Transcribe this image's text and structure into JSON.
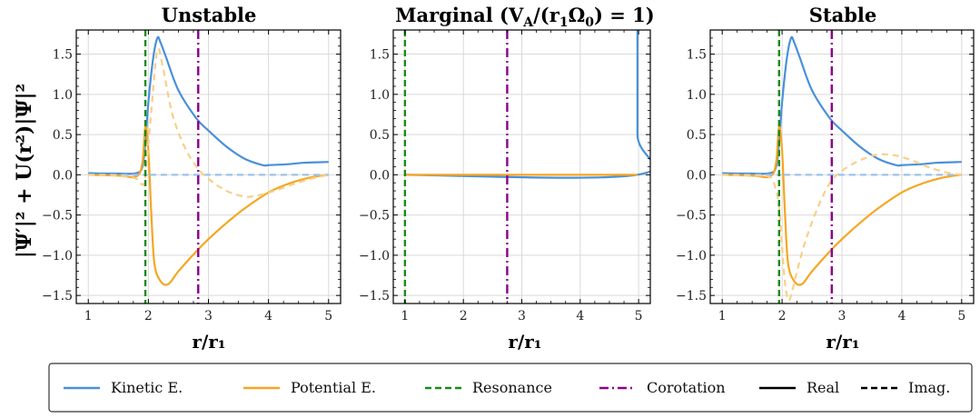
{
  "chart_data": [
    {
      "type": "line",
      "title": "Unstable",
      "xlabel": "r/r₁",
      "ylabel": "|Ψ′|² + U(r²)|Ψ|²",
      "xlim": [
        0.8,
        5.2
      ],
      "ylim": [
        -1.6,
        1.8
      ],
      "xticks": [
        1,
        2,
        3,
        4,
        5
      ],
      "yticks": [
        -1.5,
        -1.0,
        -0.5,
        0.0,
        0.5,
        1.0,
        1.5
      ],
      "xtick_labels": [
        "1",
        "2",
        "3",
        "4",
        "5"
      ],
      "ytick_labels": [
        "−1.5",
        "−1.0",
        "−0.5",
        "0.0",
        "0.5",
        "1.0",
        "1.5"
      ],
      "resonance_x": 1.95,
      "corotation_x": 2.83,
      "series": [
        {
          "name": "Kinetic E. (Real)",
          "color": "#4a90d9",
          "style": "solid",
          "x": [
            1.0,
            1.5,
            1.8,
            1.9,
            1.95,
            2.0,
            2.08,
            2.15,
            2.2,
            2.3,
            2.5,
            2.8,
            3.0,
            3.3,
            3.6,
            3.9,
            4.0,
            4.3,
            4.6,
            5.0
          ],
          "y": [
            0.02,
            0.015,
            0.02,
            0.1,
            0.4,
            0.9,
            1.45,
            1.7,
            1.65,
            1.45,
            1.05,
            0.7,
            0.55,
            0.35,
            0.2,
            0.12,
            0.12,
            0.13,
            0.15,
            0.16
          ]
        },
        {
          "name": "Potential E. (Real)",
          "color": "#f5a623",
          "style": "solid",
          "x": [
            1.0,
            1.5,
            1.8,
            1.9,
            1.95,
            2.0,
            2.05,
            2.1,
            2.2,
            2.33,
            2.5,
            2.8,
            3.0,
            3.3,
            3.6,
            4.0,
            4.3,
            4.6,
            4.8,
            5.0
          ],
          "y": [
            0.0,
            -0.01,
            -0.02,
            0.15,
            0.6,
            0.3,
            -0.5,
            -1.1,
            -1.32,
            -1.36,
            -1.2,
            -0.95,
            -0.8,
            -0.6,
            -0.42,
            -0.22,
            -0.12,
            -0.05,
            -0.02,
            0.0
          ]
        },
        {
          "name": "Kinetic E. (Imag.)",
          "color": "#9cc3ea",
          "style": "dashed",
          "x": [
            1.0,
            1.9,
            1.95,
            2.2,
            3.0,
            4.0,
            5.0
          ],
          "y": [
            0.0,
            0.0,
            0.0,
            0.0,
            0.0,
            0.0,
            0.0
          ]
        },
        {
          "name": "Potential E. (Imag.)",
          "color": "#f8cf8a",
          "style": "dashed",
          "x": [
            1.0,
            1.5,
            1.8,
            1.9,
            1.95,
            2.05,
            2.15,
            2.25,
            2.4,
            2.6,
            2.8,
            3.0,
            3.3,
            3.6,
            3.8,
            4.1,
            4.4,
            4.7,
            5.0
          ],
          "y": [
            0.0,
            -0.01,
            -0.05,
            -0.12,
            -0.02,
            0.8,
            1.55,
            1.3,
            0.75,
            0.35,
            0.1,
            -0.05,
            -0.2,
            -0.27,
            -0.26,
            -0.2,
            -0.12,
            -0.05,
            0.0
          ]
        }
      ]
    },
    {
      "type": "line",
      "title": "Marginal (V_A/(r₁Ω₀) = 1)",
      "title_main": "Marginal (V",
      "title_sub_A": "A",
      "title_mid": "/(r",
      "title_sub_1": "1",
      "title_omega": "Ω",
      "title_sub_0": "0",
      "title_end": ") = 1)",
      "xlabel": "r/r₁",
      "xlim": [
        0.8,
        5.2
      ],
      "ylim": [
        -1.6,
        1.8
      ],
      "xticks": [
        1,
        2,
        3,
        4,
        5
      ],
      "yticks": [
        -1.5,
        -1.0,
        -0.5,
        0.0,
        0.5,
        1.0,
        1.5
      ],
      "xtick_labels": [
        "1",
        "2",
        "3",
        "4",
        "5"
      ],
      "ytick_labels": [
        "−1.5",
        "−1.0",
        "−0.5",
        "0.0",
        "0.5",
        "1.0",
        "1.5"
      ],
      "resonance_x": 1.0,
      "corotation_x": 2.75,
      "series": [
        {
          "name": "Kinetic E. (Real)",
          "color": "#4a90d9",
          "style": "solid",
          "x": [
            1.0,
            4.98,
            4.98,
            4.98
          ],
          "y": [
            0.0,
            0.0,
            0.5,
            1.8
          ]
        },
        {
          "name": "Potential E. (Real)",
          "color": "#f5a623",
          "style": "solid",
          "x": [
            1.0,
            4.98
          ],
          "y": [
            0.0,
            0.0
          ]
        }
      ]
    },
    {
      "type": "line",
      "title": "Stable",
      "xlabel": "r/r₁",
      "xlim": [
        0.8,
        5.2
      ],
      "ylim": [
        -1.6,
        1.8
      ],
      "xticks": [
        1,
        2,
        3,
        4,
        5
      ],
      "yticks": [
        -1.5,
        -1.0,
        -0.5,
        0.0,
        0.5,
        1.0,
        1.5
      ],
      "xtick_labels": [
        "1",
        "2",
        "3",
        "4",
        "5"
      ],
      "ytick_labels": [
        "−1.5",
        "−1.0",
        "−0.5",
        "0.0",
        "0.5",
        "1.0",
        "1.5"
      ],
      "resonance_x": 1.95,
      "corotation_x": 2.83,
      "series": [
        {
          "name": "Kinetic E. (Real)",
          "color": "#4a90d9",
          "style": "solid",
          "x": [
            1.0,
            1.5,
            1.8,
            1.9,
            1.95,
            2.0,
            2.08,
            2.15,
            2.2,
            2.3,
            2.5,
            2.8,
            3.0,
            3.3,
            3.6,
            3.9,
            4.0,
            4.3,
            4.6,
            5.0
          ],
          "y": [
            0.02,
            0.015,
            0.02,
            0.1,
            0.4,
            0.9,
            1.45,
            1.7,
            1.65,
            1.45,
            1.05,
            0.7,
            0.55,
            0.35,
            0.2,
            0.12,
            0.12,
            0.13,
            0.15,
            0.16
          ]
        },
        {
          "name": "Potential E. (Real)",
          "color": "#f5a623",
          "style": "solid",
          "x": [
            1.0,
            1.5,
            1.8,
            1.9,
            1.95,
            2.0,
            2.05,
            2.1,
            2.2,
            2.33,
            2.5,
            2.8,
            3.0,
            3.3,
            3.6,
            4.0,
            4.3,
            4.6,
            4.8,
            5.0
          ],
          "y": [
            0.0,
            -0.01,
            -0.02,
            0.15,
            0.6,
            0.3,
            -0.5,
            -1.1,
            -1.32,
            -1.36,
            -1.2,
            -0.95,
            -0.8,
            -0.6,
            -0.42,
            -0.22,
            -0.12,
            -0.05,
            -0.02,
            0.0
          ]
        },
        {
          "name": "Kinetic E. (Imag.)",
          "color": "#9cc3ea",
          "style": "dashed",
          "x": [
            1.0,
            1.9,
            1.95,
            2.2,
            3.0,
            4.0,
            5.0
          ],
          "y": [
            0.0,
            0.0,
            0.0,
            0.0,
            0.0,
            0.0,
            0.0
          ]
        },
        {
          "name": "Potential E. (Imag.)",
          "color": "#f8cf8a",
          "style": "dashed",
          "x": [
            1.0,
            1.5,
            1.8,
            1.9,
            1.95,
            2.0,
            2.05,
            2.1,
            2.15,
            2.25,
            2.4,
            2.6,
            2.8,
            3.0,
            3.3,
            3.6,
            3.9,
            4.2,
            4.5,
            4.8,
            5.0
          ],
          "y": [
            0.0,
            -0.01,
            -0.03,
            -0.2,
            -0.4,
            -0.9,
            -1.35,
            -1.55,
            -1.5,
            -1.2,
            -0.8,
            -0.4,
            -0.1,
            0.05,
            0.18,
            0.25,
            0.24,
            0.17,
            0.08,
            0.02,
            0.0
          ]
        }
      ]
    }
  ],
  "legend": {
    "placement": "bottom",
    "items": [
      {
        "label": "Kinetic E.",
        "color": "#4a90d9",
        "style": "solid"
      },
      {
        "label": "Potential E.",
        "color": "#f5a623",
        "style": "solid"
      },
      {
        "label": "Resonance",
        "color": "#1a8a1a",
        "style": "dashed"
      },
      {
        "label": "Corotation",
        "color": "#8b008b",
        "style": "dashdot"
      },
      {
        "label": "Real",
        "color": "#000000",
        "style": "solid"
      },
      {
        "label": "Imag.",
        "color": "#000000",
        "style": "dashed"
      }
    ]
  },
  "colors": {
    "resonance": "#1a8a1a",
    "corotation": "#8b008b",
    "grid": "#d9d9d9",
    "zero_line": "#9cc3ea"
  }
}
